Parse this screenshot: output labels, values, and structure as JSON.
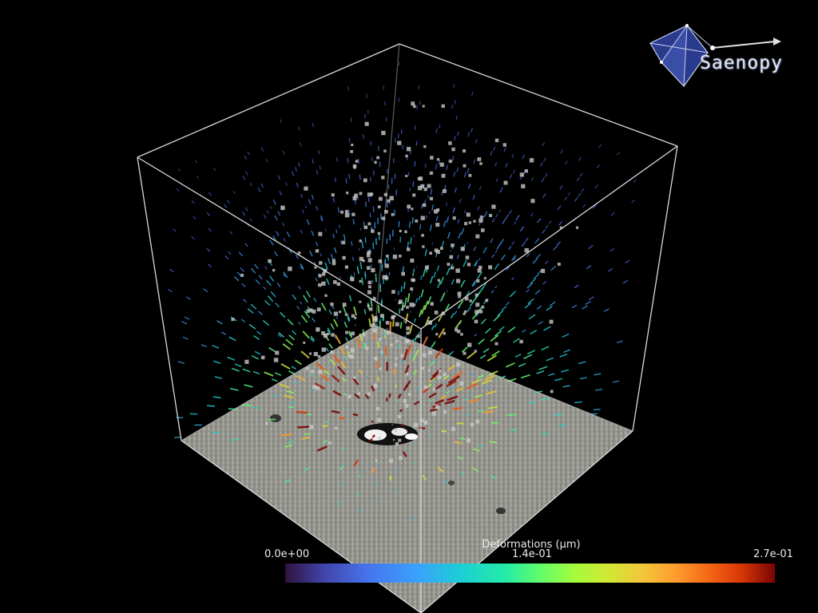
{
  "app": {
    "logo_text": "Saenopy"
  },
  "colorbar": {
    "title": "Deformations (µm)",
    "min_label": "0.0e+00",
    "mid_label": "1.4e-01",
    "max_label": "2.7e-01",
    "colormap": "turbo"
  },
  "colors": {
    "background": "#000000",
    "box_edges": "#d9d9d9",
    "points": "#c8c8c8",
    "logo_blue": "#2a3a8c"
  }
}
